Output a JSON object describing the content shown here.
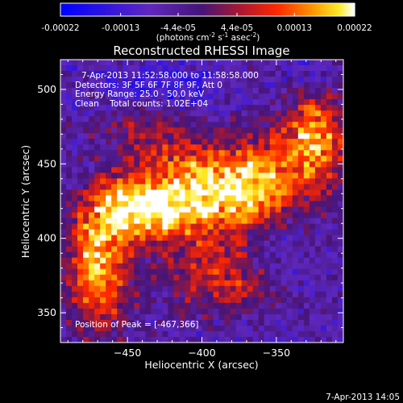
{
  "colorbar": {
    "ticks": [
      "-0.00022",
      "-0.00013",
      "-4.4e-05",
      "4.4e-05",
      "0.00013",
      "0.00022"
    ],
    "tick_values": [
      -0.00022,
      -0.00013,
      -4.4e-05,
      4.4e-05,
      0.00013,
      0.00022
    ],
    "range": [
      -0.00022,
      0.00022
    ],
    "unit_parts": [
      "(photons cm",
      "-2",
      " s",
      "-1",
      " asec",
      "-2",
      ")"
    ]
  },
  "chart_data": {
    "type": "heatmap",
    "title": "Reconstructed RHESSI Image",
    "xlabel": "Heliocentric X (arcsec)",
    "ylabel": "Heliocentric Y (arcsec)",
    "xlim": [
      -495,
      -305
    ],
    "ylim": [
      330,
      520
    ],
    "x_ticks": [
      -450,
      -400,
      -350
    ],
    "x_tick_labels": [
      "−450",
      "−400",
      "−350"
    ],
    "y_ticks": [
      350,
      400,
      450,
      500
    ],
    "y_tick_labels": [
      "350",
      "400",
      "450",
      "500"
    ],
    "peak": [
      -467,
      366
    ],
    "grid": false,
    "colormap": "rhessi-blue-red-yellow-white",
    "blobs": [
      {
        "x": -400,
        "y": 430,
        "amp": 1.0,
        "sx": 30,
        "sy": 25
      },
      {
        "x": -445,
        "y": 420,
        "amp": 0.8,
        "sx": 20,
        "sy": 15
      },
      {
        "x": -470,
        "y": 380,
        "amp": 0.9,
        "sx": 15,
        "sy": 30
      },
      {
        "x": -325,
        "y": 465,
        "amp": 0.9,
        "sx": 15,
        "sy": 25
      },
      {
        "x": -360,
        "y": 435,
        "amp": 0.6,
        "sx": 15,
        "sy": 20
      },
      {
        "x": -385,
        "y": 370,
        "amp": 0.5,
        "sx": 25,
        "sy": 15
      },
      {
        "x": -440,
        "y": 475,
        "amp": 0.35,
        "sx": 20,
        "sy": 12
      }
    ],
    "cold_regions": [
      {
        "x": -420,
        "y": 500,
        "amp": 0.9,
        "sx": 25,
        "sy": 12
      },
      {
        "x": -355,
        "y": 395,
        "amp": 0.7,
        "sx": 12,
        "sy": 15
      },
      {
        "x": -330,
        "y": 510,
        "amp": 0.6,
        "sx": 15,
        "sy": 10
      }
    ],
    "annotations": [
      "7-Apr-2013 11:52:58.000 to 11:58:58.000",
      "Detectors: 3F 5F 6F 7F 8F 9F, Att 0",
      "Energy Range: 25.0 - 50.0 keV",
      "Clean    Total counts: 1.02E+04"
    ],
    "peak_label": "Position of Peak = [-467,366]"
  },
  "footer": {
    "timestamp": "7-Apr-2013 14:05"
  }
}
